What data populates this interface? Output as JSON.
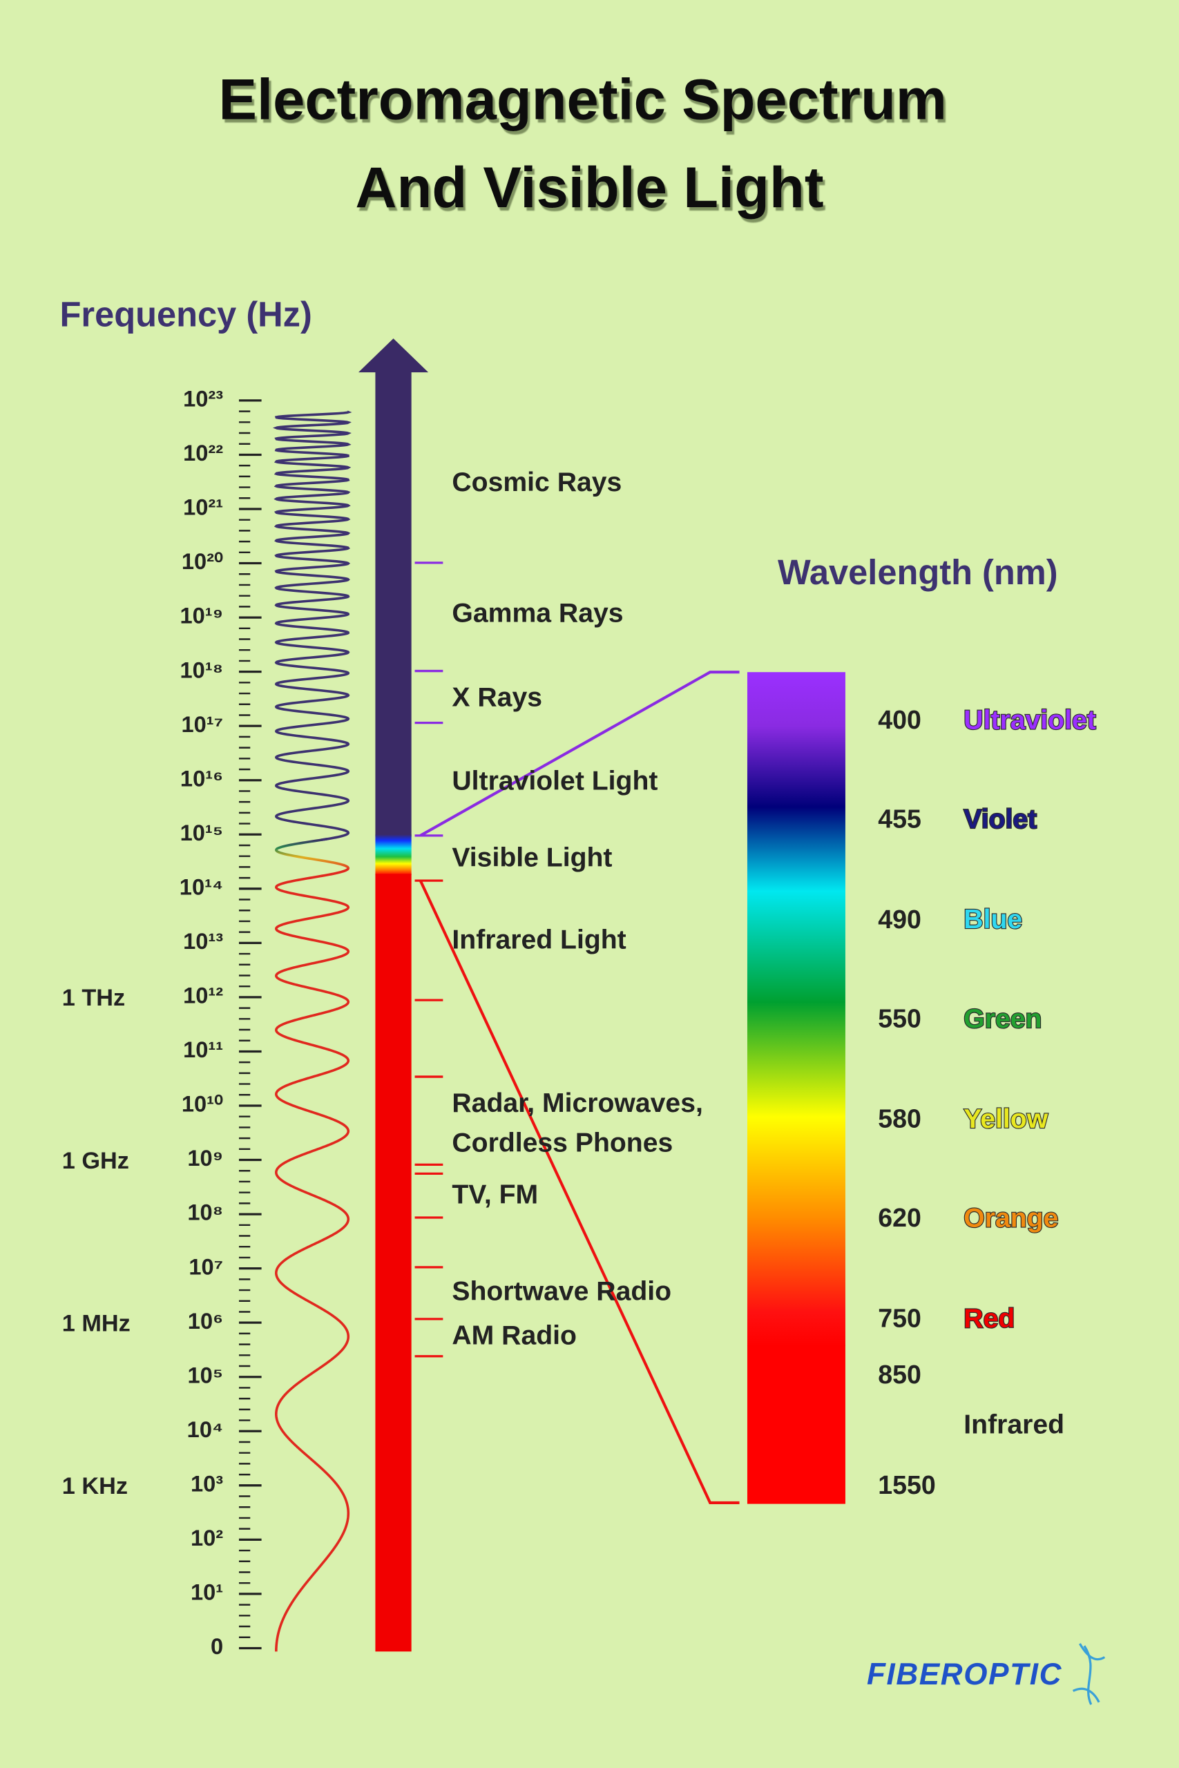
{
  "title": {
    "line1": "Electromagnetic Spectrum",
    "line2": "And Visible Light"
  },
  "frequency_axis": {
    "title": "Frequency (Hz)",
    "ticks": [
      "10²³",
      "10²²",
      "10²¹",
      "10²⁰",
      "10¹⁹",
      "10¹⁸",
      "10¹⁷",
      "10¹⁶",
      "10¹⁵",
      "10¹⁴",
      "10¹³",
      "10¹²",
      "10¹¹",
      "10¹⁰",
      "10⁹",
      "10⁸",
      "10⁷",
      "10⁶",
      "10⁵",
      "10⁴",
      "10³",
      "10²",
      "10¹",
      "0"
    ],
    "units": [
      "1 THz",
      "1 GHz",
      "1 MHz",
      "1 KHz"
    ]
  },
  "bands": [
    "Cosmic Rays",
    "Gamma Rays",
    "X Rays",
    "Ultraviolet Light",
    "Visible Light",
    "Infrared Light",
    "Radar, Microwaves,",
    "Cordless Phones",
    "TV, FM",
    "Shortwave Radio",
    "AM Radio"
  ],
  "wavelength": {
    "title": "Wavelength (nm)",
    "values": [
      "400",
      "455",
      "490",
      "550",
      "580",
      "620",
      "750",
      "850",
      "1550"
    ],
    "names": [
      "Ultraviolet",
      "Violet",
      "Blue",
      "Green",
      "Yellow",
      "Orange",
      "Red",
      "Infrared"
    ]
  },
  "logo": "FIBEROPTIC"
}
